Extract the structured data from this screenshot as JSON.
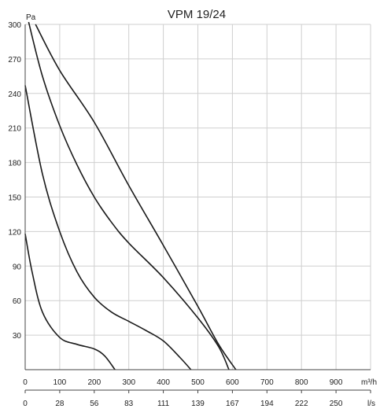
{
  "chart_data": {
    "type": "line",
    "title": "VPM 19/24",
    "ylabel": "Pa",
    "x_unit_label": "m³/h",
    "x2_unit_label": "l/s",
    "xlim": [
      0,
      1000
    ],
    "ylim": [
      0,
      300
    ],
    "y_ticks": [
      30,
      60,
      90,
      120,
      150,
      180,
      210,
      240,
      270,
      300
    ],
    "x_ticks": [
      0,
      100,
      200,
      300,
      400,
      500,
      600,
      700,
      800,
      900
    ],
    "x2_ticks": [
      0,
      28,
      56,
      83,
      111,
      139,
      167,
      194,
      222,
      250
    ],
    "grid": true,
    "series": [
      {
        "x": [
          0,
          20,
          50,
          100,
          150,
          200,
          230,
          260
        ],
        "y": [
          118,
          85,
          50,
          28,
          22,
          18,
          12,
          0
        ]
      },
      {
        "x": [
          0,
          50,
          100,
          150,
          200,
          250,
          300,
          350,
          400,
          450,
          480
        ],
        "y": [
          247,
          170,
          120,
          85,
          63,
          50,
          42,
          34,
          25,
          10,
          0
        ]
      },
      {
        "x": [
          10,
          50,
          100,
          150,
          200,
          250,
          300,
          400,
          500,
          560,
          590
        ],
        "y": [
          302,
          255,
          212,
          178,
          150,
          128,
          110,
          80,
          45,
          20,
          0
        ]
      },
      {
        "x": [
          30,
          100,
          200,
          300,
          400,
          500,
          560,
          610
        ],
        "y": [
          300,
          260,
          215,
          160,
          108,
          55,
          22,
          0
        ]
      }
    ]
  }
}
